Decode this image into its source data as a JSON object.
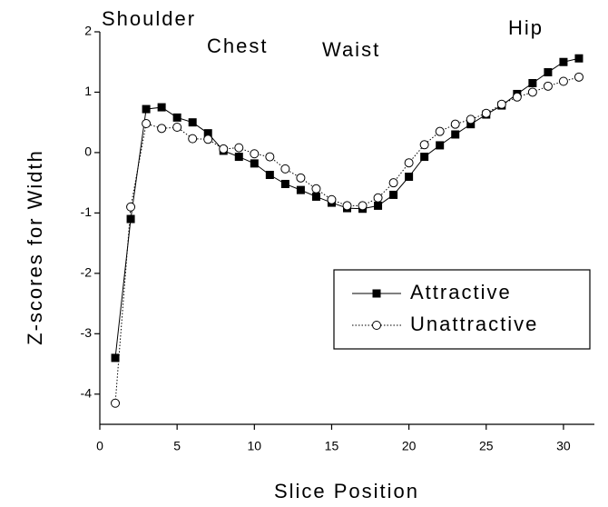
{
  "chart_data": {
    "type": "line",
    "x_label": "Slice Position",
    "y_label": "Z-scores for Width",
    "annotations": [
      "Shoulder",
      "Chest",
      "Waist",
      "Hip"
    ],
    "x": [
      1,
      2,
      3,
      4,
      5,
      6,
      7,
      8,
      9,
      10,
      11,
      12,
      13,
      14,
      15,
      16,
      17,
      18,
      19,
      20,
      21,
      22,
      23,
      24,
      25,
      26,
      27,
      28,
      29,
      30,
      31
    ],
    "series": [
      {
        "name": "Attractive",
        "color": "#000000",
        "marker": "filled-square",
        "line": "solid",
        "values": [
          -3.4,
          -1.1,
          0.72,
          0.75,
          0.58,
          0.5,
          0.32,
          0.03,
          -0.07,
          -0.18,
          -0.37,
          -0.52,
          -0.62,
          -0.73,
          -0.83,
          -0.92,
          -0.93,
          -0.88,
          -0.7,
          -0.4,
          -0.07,
          0.12,
          0.3,
          0.47,
          0.63,
          0.78,
          0.97,
          1.15,
          1.33,
          1.5,
          1.56
        ]
      },
      {
        "name": "Unattractive",
        "color": "#000000",
        "marker": "open-circle",
        "line": "dotted",
        "values": [
          -4.15,
          -0.9,
          0.48,
          0.4,
          0.42,
          0.23,
          0.22,
          0.06,
          0.08,
          -0.02,
          -0.07,
          -0.27,
          -0.42,
          -0.6,
          -0.78,
          -0.88,
          -0.88,
          -0.75,
          -0.5,
          -0.17,
          0.13,
          0.35,
          0.47,
          0.55,
          0.65,
          0.8,
          0.92,
          1.0,
          1.1,
          1.18,
          1.25
        ]
      }
    ],
    "xlim": [
      0,
      32
    ],
    "xticks": [
      0,
      5,
      10,
      15,
      20,
      25,
      30
    ],
    "ylim": [
      -4.5,
      2
    ],
    "yticks": [
      -4,
      -3,
      -2,
      -1,
      0,
      1,
      2
    ],
    "legend": "lower right",
    "grid": false
  }
}
